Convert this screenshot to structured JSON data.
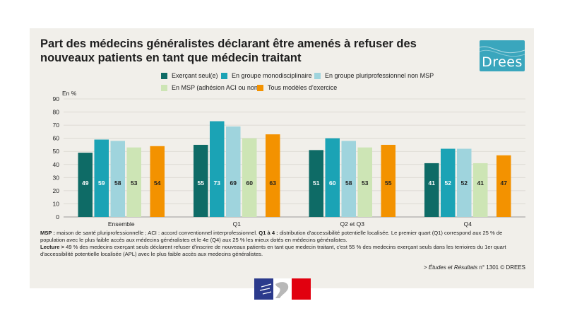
{
  "title": "Part des médecins généralistes déclarant être amenés à refuser des nouveaux patients en tant que médecin traitant",
  "logo_text": "Drees",
  "chart_data": {
    "type": "bar",
    "ylabel": "En %",
    "ylim": [
      0,
      90
    ],
    "yticks": [
      0,
      10,
      20,
      30,
      40,
      50,
      60,
      70,
      80,
      90
    ],
    "grid": true,
    "legend_position": "top",
    "categories": [
      "Ensemble",
      "Q1",
      "Q2 et Q3",
      "Q4"
    ],
    "series": [
      {
        "name": "Exerçant seul(e)",
        "color": "#0e6b66",
        "values": [
          49,
          55,
          51,
          41
        ]
      },
      {
        "name": "En groupe monodisciplinaire",
        "color": "#1ba3b5",
        "values": [
          59,
          73,
          60,
          52
        ]
      },
      {
        "name": "En groupe pluriprofessionnel non MSP",
        "color": "#9fd4dd",
        "values": [
          58,
          69,
          58,
          52
        ]
      },
      {
        "name": "En MSP (adhésion ACI ou non)",
        "color": "#cde5b5",
        "values": [
          53,
          60,
          53,
          41
        ]
      },
      {
        "name": "Tous modèles d'exercice",
        "color": "#f39200",
        "values": [
          54,
          63,
          55,
          47
        ]
      }
    ]
  },
  "notes": {
    "msp_label": "MSP :",
    "msp_text": " maison de santé pluriprofessionnelle ; ACI : accord conventionnel interprofessionnel. ",
    "q_label": "Q1 à 4 :",
    "q_text": " distribution d'accessibilité potentielle localisée. Le premier quart (Q1) correspond aux 25 % de population avec le plus faible accès aux médecins généralistes et le 4e (Q4) aux 25 % les mieux dotés en médecins généralistes.",
    "lecture_label": "Lecture >",
    "lecture_text": " 49 % des medecins exerçant seuls déclarent refuser d'inscrire de nouveaux patients en tant que medecin traitant, c'est 55 % des medecins exerçant seuls dans les terrioires du 1er quart d'accessibilité potentielle localisée (APL) avec le plus faible accès aux medecins généralistes."
  },
  "source": {
    "prefix": "> ",
    "publication": "Études et Résultats",
    "suffix": " n° 1301 © DREES"
  }
}
